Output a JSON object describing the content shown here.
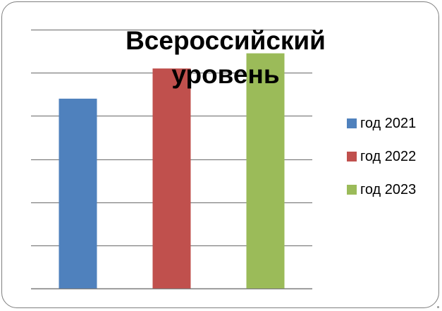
{
  "chart_data": {
    "type": "bar",
    "title": "Всероссийский уровень",
    "title_lines": [
      "Всероссийский",
      "уровень"
    ],
    "categories": [
      "год 2021",
      "год 2022",
      "год 2023"
    ],
    "values": [
      4.4,
      5.1,
      5.45
    ],
    "colors": [
      "#4f81bd",
      "#c0504d",
      "#9bbb59"
    ],
    "ylim": [
      0,
      6
    ],
    "ygrid_step": 1,
    "grid": true,
    "legend": "right",
    "series": [
      {
        "name": "год 2021",
        "color": "#4f81bd"
      },
      {
        "name": "год 2022",
        "color": "#c0504d"
      },
      {
        "name": "год 2023",
        "color": "#9bbb59"
      }
    ]
  }
}
